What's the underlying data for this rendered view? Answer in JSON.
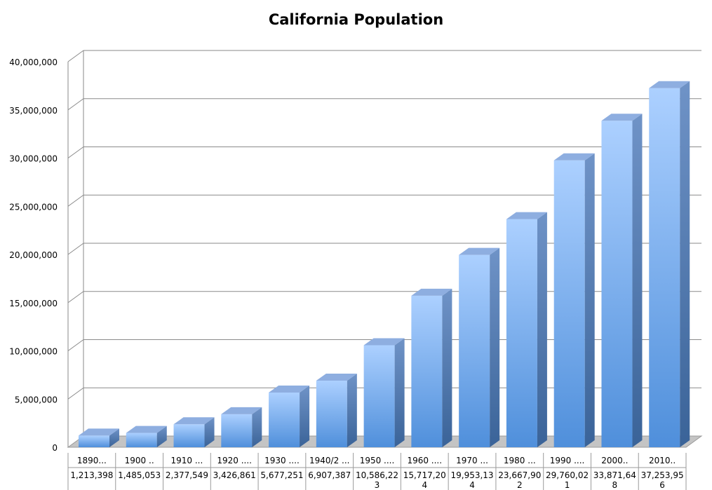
{
  "chart_data": {
    "type": "bar",
    "title": "California Population",
    "xlabel": "",
    "ylabel": "",
    "ylim": [
      0,
      40000000
    ],
    "y_ticks": [
      0,
      5000000,
      10000000,
      15000000,
      20000000,
      25000000,
      30000000,
      35000000,
      40000000
    ],
    "y_tick_labels": [
      "0",
      "5,000,000",
      "10,000,000",
      "15,000,000",
      "20,000,000",
      "25,000,000",
      "30,000,000",
      "35,000,000",
      "40,000,000"
    ],
    "grid": true,
    "style": "3d-column",
    "bar_color": "#5b9be0",
    "categories": [
      "1890...",
      "1900 ..",
      "1910 ...",
      "1920 ....",
      "1930 ....",
      "1940/2 ...",
      "1950 ....",
      "1960 ....",
      "1970 ...",
      "1980 ...",
      "1990 ....",
      "2000..",
      "2010.."
    ],
    "value_labels": [
      [
        "1,213,398"
      ],
      [
        "1,485,053"
      ],
      [
        "2,377,549"
      ],
      [
        "3,426,861"
      ],
      [
        "5,677,251"
      ],
      [
        "6,907,387"
      ],
      [
        "10,586,22",
        "3"
      ],
      [
        "15,717,20",
        "4"
      ],
      [
        "19,953,13",
        "4"
      ],
      [
        "23,667,90",
        "2"
      ],
      [
        "29,760,02",
        "1"
      ],
      [
        "33,871,64",
        "8"
      ],
      [
        "37,253,95",
        "6"
      ]
    ],
    "values": [
      1213398,
      1485053,
      2377549,
      3426861,
      5677251,
      6907387,
      10586223,
      15717204,
      19953134,
      23667902,
      29760021,
      33871648,
      37253956
    ]
  }
}
